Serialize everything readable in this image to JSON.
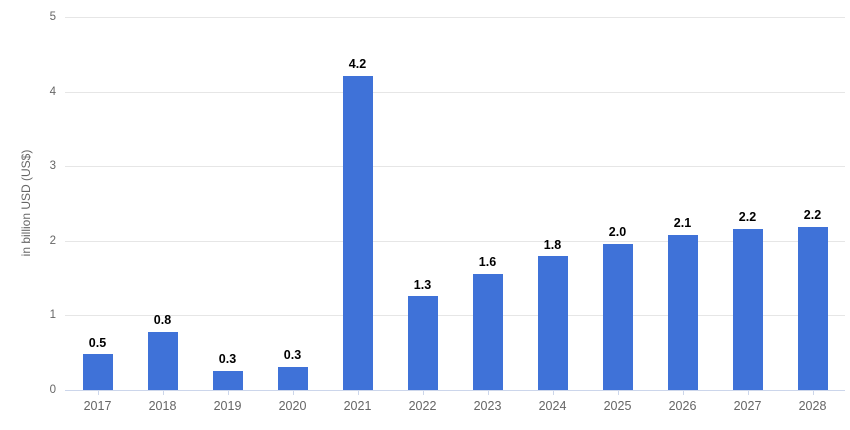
{
  "chart_data": {
    "type": "bar",
    "title": "",
    "xlabel": "",
    "ylabel": "in billion USD (US$)",
    "categories": [
      "2017",
      "2018",
      "2019",
      "2020",
      "2021",
      "2022",
      "2023",
      "2024",
      "2025",
      "2026",
      "2027",
      "2028"
    ],
    "values": [
      0.5,
      0.8,
      0.3,
      0.3,
      4.2,
      1.3,
      1.6,
      1.8,
      2.0,
      2.1,
      2.2,
      2.2
    ],
    "value_labels": [
      "0.5",
      "0.8",
      "0.3",
      "0.3",
      "4.2",
      "1.3",
      "1.6",
      "1.8",
      "2.0",
      "2.1",
      "2.2",
      "2.2"
    ],
    "precise_values": [
      0.48,
      0.78,
      0.26,
      0.31,
      4.21,
      1.26,
      1.56,
      1.79,
      1.96,
      2.08,
      2.16,
      2.19
    ],
    "ylim": [
      0,
      5
    ],
    "yticks": [
      0,
      1,
      2,
      3,
      4,
      5
    ],
    "grid": true,
    "legend": "none",
    "colors": {
      "bar": "#3f72d8",
      "gridline": "#e6e6e6",
      "axis_line": "#ccd6eb",
      "tick_label": "#666666",
      "data_label": "#000000",
      "background": "#ffffff"
    }
  }
}
